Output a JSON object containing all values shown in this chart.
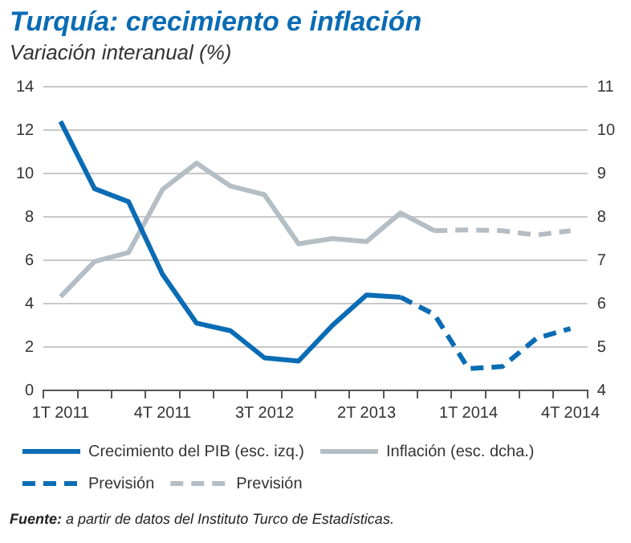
{
  "chart_data": {
    "type": "line",
    "title": "Turquía: crecimiento e inflación",
    "subtitle": "Variación interanual (%)",
    "categories": [
      "1T 2011",
      null,
      null,
      "4T 2011",
      null,
      null,
      "3T 2012",
      null,
      null,
      "2T 2013",
      null,
      null,
      "1T 2014",
      null,
      null,
      "4T 2014"
    ],
    "series": [
      {
        "name": "Crecimiento del PIB (esc. izq.)",
        "color": "#0a6cb4",
        "line_style": "solid",
        "values": [
          12.4,
          9.3,
          8.7,
          5.35,
          3.1,
          2.75,
          1.5,
          1.35,
          3.0,
          4.4,
          4.3,
          null,
          null,
          null,
          null,
          null
        ]
      },
      {
        "name": "Inflación (esc. dcha.)",
        "color": "#b4bec4",
        "line_style": "solid",
        "axis": "y2",
        "values": [
          6.16,
          6.97,
          7.18,
          8.63,
          9.24,
          8.71,
          8.51,
          7.38,
          7.5,
          7.43,
          8.09,
          7.68,
          null,
          null,
          null,
          null
        ]
      },
      {
        "name": "Previsión",
        "color": "#0a6cb4",
        "line_style": "dashed",
        "values": [
          null,
          null,
          null,
          null,
          null,
          null,
          null,
          null,
          null,
          null,
          4.3,
          3.5,
          1.0,
          1.1,
          2.4,
          2.85
        ]
      },
      {
        "name": "Previsión",
        "color": "#b4bec4",
        "line_style": "dashed",
        "axis": "y2",
        "values": [
          null,
          null,
          null,
          null,
          null,
          null,
          null,
          null,
          null,
          null,
          null,
          7.68,
          7.7,
          7.68,
          7.58,
          7.68
        ]
      }
    ],
    "ylim": [
      0,
      14
    ],
    "yticks": [
      0,
      2,
      4,
      6,
      8,
      10,
      12,
      14
    ],
    "y2lim": [
      4,
      11
    ],
    "y2ticks": [
      4,
      5,
      6,
      7,
      8,
      9,
      10,
      11
    ],
    "grid": "y",
    "legend": "bottom",
    "marker": "none",
    "annotations": [
      "Fuente: a partir de datos del Instituto Turco de Estadísticas."
    ]
  }
}
